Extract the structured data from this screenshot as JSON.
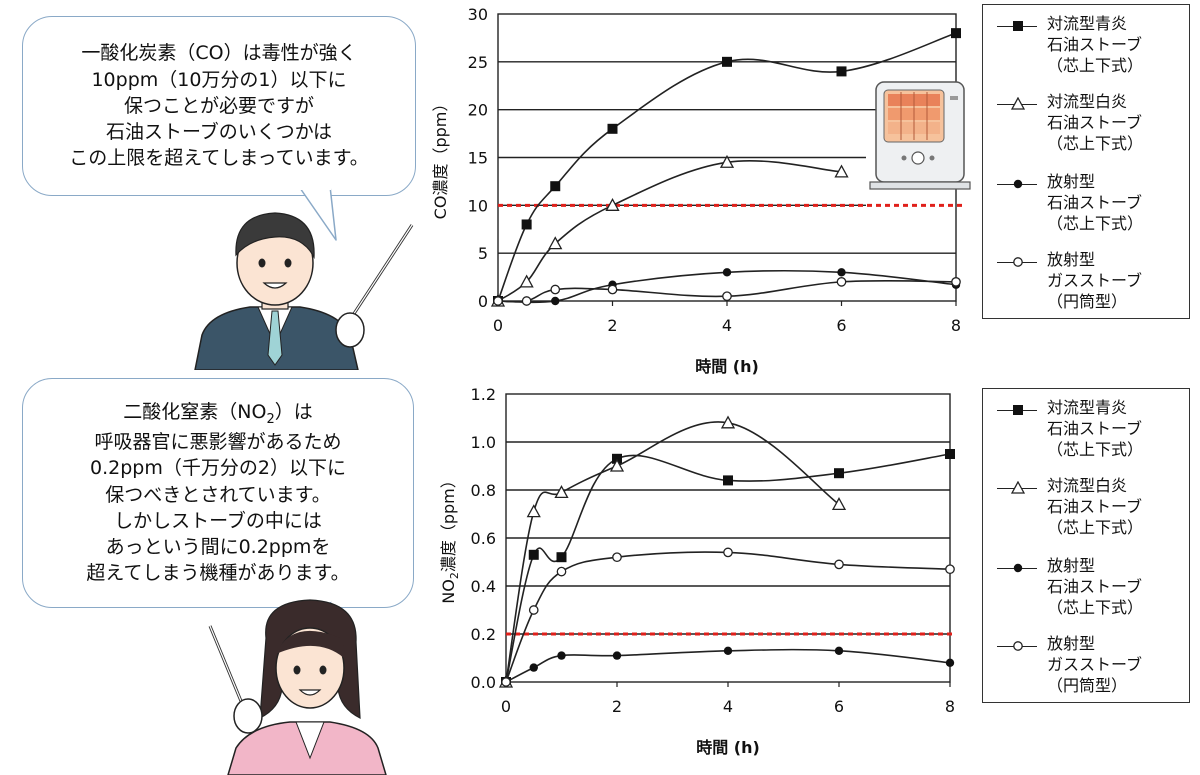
{
  "bubbles": {
    "co": "一酸化炭素（CO）は毒性が強く\n10ppm（10万分の1）以下に\n保つことが必要ですが\n石油ストーブのいくつかは\nこの上限を超えてしまっています。",
    "no2_line1": "二酸化窒素（NO",
    "no2_sub": "2",
    "no2_line1_end": "）は",
    "no2_rest": "呼吸器官に悪影響があるため\n0.2ppm（千万分の2）以下に\n保つべきとされています。\nしかしストーブの中には\nあっという間に0.2ppmを\n超えてしまう機種があります。"
  },
  "legend": [
    {
      "marker": "filled-square",
      "label": "対流型青炎\n石油ストーブ\n（芯上下式）"
    },
    {
      "marker": "open-triangle",
      "label": "対流型白炎\n石油ストーブ\n（芯上下式）"
    },
    {
      "marker": "filled-circle",
      "label": "放射型\n石油ストーブ\n（芯上下式）"
    },
    {
      "marker": "open-circle",
      "label": "放射型\nガスストーブ\n（円筒型）"
    }
  ],
  "icons": {
    "stove": "kerosene-heater-icon",
    "man": "man-with-pointer-illustration",
    "woman": "woman-with-pointer-illustration"
  },
  "colors": {
    "limit_line": "#e0201b",
    "bubble_border": "#8aa9c7",
    "suit": "#3b5568",
    "pink": "#f2b6c8"
  },
  "chart_data": [
    {
      "type": "line",
      "xlabel": "時間 (h)",
      "ylabel": "CO濃度（ppm）",
      "xlim": [
        0,
        8
      ],
      "ylim": [
        0,
        30
      ],
      "xticks": [
        0,
        2,
        4,
        6,
        8
      ],
      "yticks": [
        0,
        5,
        10,
        15,
        20,
        25,
        30
      ],
      "limit": 10,
      "series": [
        {
          "name": "対流型青炎石油ストーブ（芯上下式）",
          "marker": "filled-square",
          "points": [
            [
              0,
              0
            ],
            [
              0.5,
              8
            ],
            [
              1,
              12
            ],
            [
              2,
              18
            ],
            [
              4,
              25
            ],
            [
              6,
              24
            ],
            [
              8,
              28
            ]
          ]
        },
        {
          "name": "対流型白炎石油ストーブ（芯上下式）",
          "marker": "open-triangle",
          "points": [
            [
              0,
              0
            ],
            [
              0.5,
              2
            ],
            [
              1,
              6
            ],
            [
              2,
              10
            ],
            [
              4,
              14.5
            ],
            [
              6,
              13.5
            ]
          ]
        },
        {
          "name": "放射型石油ストーブ（芯上下式）",
          "marker": "filled-circle",
          "points": [
            [
              0,
              0
            ],
            [
              1,
              0
            ],
            [
              2,
              1.7
            ],
            [
              4,
              3
            ],
            [
              6,
              3
            ],
            [
              8,
              1.7
            ]
          ]
        },
        {
          "name": "放射型ガスストーブ（円筒型）",
          "marker": "open-circle",
          "points": [
            [
              0,
              0
            ],
            [
              0.5,
              0
            ],
            [
              1,
              1.2
            ],
            [
              2,
              1.2
            ],
            [
              4,
              0.5
            ],
            [
              6,
              2
            ],
            [
              8,
              2
            ]
          ]
        }
      ]
    },
    {
      "type": "line",
      "xlabel": "時間 (h)",
      "ylabel_main": "NO",
      "ylabel_sub": "2",
      "ylabel_end": "濃度（ppm）",
      "xlim": [
        0,
        8
      ],
      "ylim": [
        0,
        1.2
      ],
      "xticks": [
        0,
        2,
        4,
        6,
        8
      ],
      "yticks": [
        "0.0",
        "0.2",
        "0.4",
        "0.6",
        "0.8",
        "1.0",
        "1.2"
      ],
      "limit": 0.2,
      "series": [
        {
          "name": "対流型青炎石油ストーブ（芯上下式）",
          "marker": "filled-square",
          "points": [
            [
              0,
              0
            ],
            [
              0.5,
              0.53
            ],
            [
              1,
              0.52
            ],
            [
              2,
              0.93
            ],
            [
              4,
              0.84
            ],
            [
              6,
              0.87
            ],
            [
              8,
              0.95
            ]
          ]
        },
        {
          "name": "対流型白炎石油ストーブ（芯上下式）",
          "marker": "open-triangle",
          "points": [
            [
              0,
              0
            ],
            [
              0.5,
              0.71
            ],
            [
              1,
              0.79
            ],
            [
              2,
              0.9
            ],
            [
              4,
              1.08
            ],
            [
              6,
              0.74
            ]
          ]
        },
        {
          "name": "放射型石油ストーブ（芯上下式）",
          "marker": "filled-circle",
          "points": [
            [
              0,
              0
            ],
            [
              0.5,
              0.06
            ],
            [
              1,
              0.11
            ],
            [
              2,
              0.11
            ],
            [
              4,
              0.13
            ],
            [
              6,
              0.13
            ],
            [
              8,
              0.08
            ]
          ]
        },
        {
          "name": "放射型ガスストーブ（円筒型）",
          "marker": "open-circle",
          "points": [
            [
              0,
              0
            ],
            [
              0.5,
              0.3
            ],
            [
              1,
              0.46
            ],
            [
              2,
              0.52
            ],
            [
              4,
              0.54
            ],
            [
              6,
              0.49
            ],
            [
              8,
              0.47
            ]
          ]
        }
      ]
    }
  ]
}
